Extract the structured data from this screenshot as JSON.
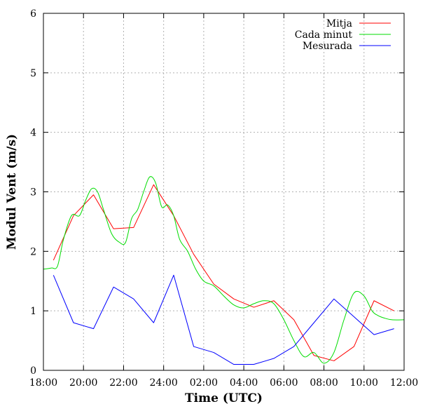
{
  "chart_data": {
    "type": "line",
    "xlabel": "Time (UTC)",
    "ylabel": "Modul Vent (m/s)",
    "xlim": [
      18,
      36
    ],
    "ylim": [
      0,
      6
    ],
    "x_ticks": [
      {
        "value": 18,
        "label": "18:00"
      },
      {
        "value": 20,
        "label": "20:00"
      },
      {
        "value": 22,
        "label": "22:00"
      },
      {
        "value": 24,
        "label": "24:00"
      },
      {
        "value": 26,
        "label": "02:00"
      },
      {
        "value": 28,
        "label": "04:00"
      },
      {
        "value": 30,
        "label": "06:00"
      },
      {
        "value": 32,
        "label": "08:00"
      },
      {
        "value": 34,
        "label": "10:00"
      },
      {
        "value": 36,
        "label": "12:00"
      }
    ],
    "y_ticks": [
      0,
      1,
      2,
      3,
      4,
      5,
      6
    ],
    "grid": true,
    "legend_position": "top-right",
    "series": [
      {
        "name": "Mitja",
        "color": "#ff0000",
        "smooth": false,
        "x": [
          18.5,
          19.5,
          20.5,
          21.5,
          22.5,
          23.5,
          24.5,
          25.5,
          26.5,
          27.5,
          28.5,
          29.5,
          30.5,
          31.5,
          32.5,
          33.5,
          34.5,
          35.5
        ],
        "y": [
          1.85,
          2.6,
          2.95,
          2.38,
          2.4,
          3.12,
          2.6,
          1.95,
          1.45,
          1.2,
          1.06,
          1.17,
          0.85,
          0.25,
          0.16,
          0.4,
          1.17,
          1.0
        ]
      },
      {
        "name": "Cada minut",
        "color": "#00dd00",
        "smooth": true,
        "x": [
          18.0,
          18.4,
          18.7,
          19.0,
          19.4,
          19.8,
          20.1,
          20.4,
          20.7,
          21.0,
          21.4,
          21.8,
          22.1,
          22.4,
          22.7,
          23.0,
          23.3,
          23.6,
          23.9,
          24.2,
          24.5,
          24.8,
          25.2,
          25.6,
          26.0,
          26.5,
          27.0,
          27.5,
          28.0,
          28.5,
          29.0,
          29.5,
          30.0,
          30.5,
          31.0,
          31.5,
          32.0,
          32.5,
          33.0,
          33.5,
          34.0,
          34.4,
          34.7,
          35.0,
          35.4,
          36.0
        ],
        "y": [
          1.7,
          1.72,
          1.75,
          2.2,
          2.6,
          2.6,
          2.85,
          3.05,
          3.0,
          2.7,
          2.3,
          2.15,
          2.15,
          2.55,
          2.7,
          3.0,
          3.25,
          3.15,
          2.75,
          2.78,
          2.6,
          2.2,
          2.0,
          1.7,
          1.5,
          1.42,
          1.25,
          1.1,
          1.05,
          1.12,
          1.17,
          1.12,
          0.85,
          0.5,
          0.23,
          0.3,
          0.12,
          0.3,
          0.85,
          1.3,
          1.25,
          1.0,
          0.92,
          0.88,
          0.85,
          0.85
        ]
      },
      {
        "name": "Mesurada",
        "color": "#0000ff",
        "smooth": false,
        "x": [
          18.5,
          19.5,
          20.5,
          21.5,
          22.5,
          23.5,
          24.5,
          25.5,
          26.5,
          27.5,
          28.5,
          29.5,
          30.5,
          31.5,
          32.5,
          33.5,
          34.5,
          35.5
        ],
        "y": [
          1.6,
          0.8,
          0.7,
          1.4,
          1.2,
          0.8,
          1.6,
          0.4,
          0.3,
          0.1,
          0.1,
          0.2,
          0.4,
          0.8,
          1.2,
          0.9,
          0.6,
          0.7
        ]
      }
    ]
  }
}
